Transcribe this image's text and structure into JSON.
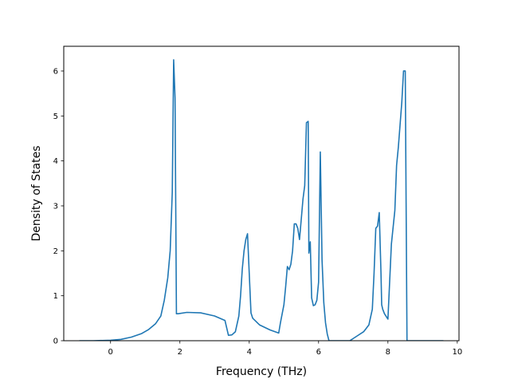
{
  "chart_data": {
    "type": "line",
    "title": "",
    "xlabel": "Frequency (THz)",
    "ylabel": "Density of States",
    "xlim": [
      -1.35,
      10.05
    ],
    "ylim": [
      0,
      6.55
    ],
    "xticks": [
      "0",
      "2",
      "4",
      "6",
      "8",
      "10"
    ],
    "xtick_values": [
      0,
      2,
      4,
      6,
      8,
      10
    ],
    "yticks": [
      "0",
      "1",
      "2",
      "3",
      "4",
      "5",
      "6"
    ],
    "ytick_values": [
      0,
      1,
      2,
      3,
      4,
      5,
      6
    ],
    "grid": false,
    "legend": "none",
    "series_color": "#1f77b4",
    "series": [
      {
        "x": [
          -0.9,
          -0.5,
          0.0,
          0.3,
          0.6,
          0.9,
          1.1,
          1.3,
          1.45,
          1.55,
          1.65,
          1.72,
          1.78,
          1.82,
          1.86,
          1.9,
          1.95,
          2.2,
          2.6,
          3.0,
          3.3,
          3.4,
          3.5,
          3.6,
          3.7,
          3.75,
          3.8,
          3.85,
          3.9,
          3.95,
          4.0,
          4.05,
          4.1,
          4.3,
          4.6,
          4.85,
          4.9,
          5.0,
          5.05,
          5.1,
          5.15,
          5.2,
          5.25,
          5.3,
          5.35,
          5.4,
          5.45,
          5.5,
          5.55,
          5.6,
          5.65,
          5.7,
          5.72,
          5.76,
          5.8,
          5.85,
          5.9,
          5.95,
          6.0,
          6.05,
          6.1,
          6.15,
          6.2,
          6.25,
          6.3,
          6.4,
          6.6,
          6.9,
          7.1,
          7.3,
          7.45,
          7.55,
          7.6,
          7.65,
          7.7,
          7.75,
          7.8,
          7.82,
          7.85,
          7.9,
          8.0,
          8.1,
          8.2,
          8.25,
          8.3,
          8.35,
          8.4,
          8.45,
          8.5,
          8.55,
          8.6,
          8.65,
          8.7,
          8.75,
          9.0,
          9.6
        ],
        "y": [
          0,
          0,
          0.01,
          0.03,
          0.08,
          0.16,
          0.25,
          0.38,
          0.55,
          0.9,
          1.4,
          2.0,
          3.3,
          6.25,
          5.4,
          0.6,
          0.6,
          0.63,
          0.62,
          0.55,
          0.45,
          0.12,
          0.13,
          0.2,
          0.55,
          1.0,
          1.6,
          2.0,
          2.25,
          2.38,
          1.5,
          0.62,
          0.5,
          0.35,
          0.24,
          0.17,
          0.4,
          0.8,
          1.2,
          1.65,
          1.58,
          1.7,
          2.0,
          2.6,
          2.6,
          2.5,
          2.25,
          2.7,
          3.15,
          3.45,
          4.85,
          4.88,
          1.95,
          2.2,
          0.95,
          0.78,
          0.8,
          0.9,
          1.3,
          4.2,
          1.8,
          0.85,
          0.4,
          0.15,
          0.0,
          0.0,
          0.0,
          0.0,
          0.1,
          0.2,
          0.35,
          0.7,
          1.5,
          2.5,
          2.55,
          2.85,
          1.5,
          0.8,
          0.7,
          0.6,
          0.48,
          2.15,
          2.9,
          3.9,
          4.3,
          4.8,
          5.3,
          6.0,
          6.0,
          0.0,
          0.0,
          0.0,
          0.0,
          0.0,
          0.0,
          0.0
        ]
      }
    ]
  }
}
